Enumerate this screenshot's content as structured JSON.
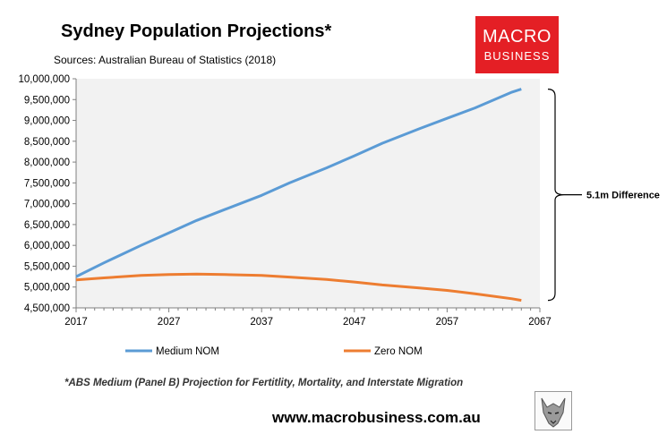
{
  "header": {
    "title": "Sydney Population Projections*",
    "source": "Sources: Australian Bureau of Statistics (2018)"
  },
  "logo": {
    "line1": "MACRO",
    "line2": "BUSINESS"
  },
  "footnote": "*ABS Medium (Panel B) Projection for Fertitlity, Mortality, and Interstate Migration",
  "website": "www.macrobusiness.com.au",
  "colors": {
    "medium": "#5b9bd5",
    "zero": "#ed7d31",
    "plot_bg": "#f2f2f2",
    "logo_bg": "#e41f25"
  },
  "chart_data": {
    "type": "line",
    "title": "Sydney Population Projections*",
    "xlim": [
      2017,
      2067
    ],
    "xticks": [
      "2017",
      "2027",
      "2037",
      "2047",
      "2057",
      "2067"
    ],
    "ylim": [
      4500000,
      10000000
    ],
    "yticks": [
      "10,000,000",
      "9,500,000",
      "9,000,000",
      "8,500,000",
      "8,000,000",
      "7,500,000",
      "7,000,000",
      "6,500,000",
      "6,000,000",
      "5,500,000",
      "5,000,000",
      "4,500,000"
    ],
    "grid": false,
    "legend_position": "bottom",
    "annotation": "5.1m Difference",
    "series": [
      {
        "name": "Medium NOM",
        "x": [
          2017,
          2020,
          2024,
          2027,
          2030,
          2033,
          2037,
          2040,
          2044,
          2047,
          2050,
          2054,
          2057,
          2060,
          2064,
          2065
        ],
        "values": [
          5250000,
          5580000,
          6000000,
          6300000,
          6600000,
          6860000,
          7200000,
          7500000,
          7860000,
          8150000,
          8450000,
          8800000,
          9050000,
          9300000,
          9680000,
          9750000
        ]
      },
      {
        "name": "Zero NOM",
        "x": [
          2017,
          2020,
          2024,
          2027,
          2030,
          2033,
          2037,
          2040,
          2044,
          2047,
          2050,
          2054,
          2057,
          2060,
          2064,
          2065
        ],
        "values": [
          5170000,
          5220000,
          5280000,
          5300000,
          5310000,
          5300000,
          5280000,
          5240000,
          5180000,
          5120000,
          5050000,
          4980000,
          4920000,
          4840000,
          4720000,
          4680000
        ]
      }
    ]
  }
}
